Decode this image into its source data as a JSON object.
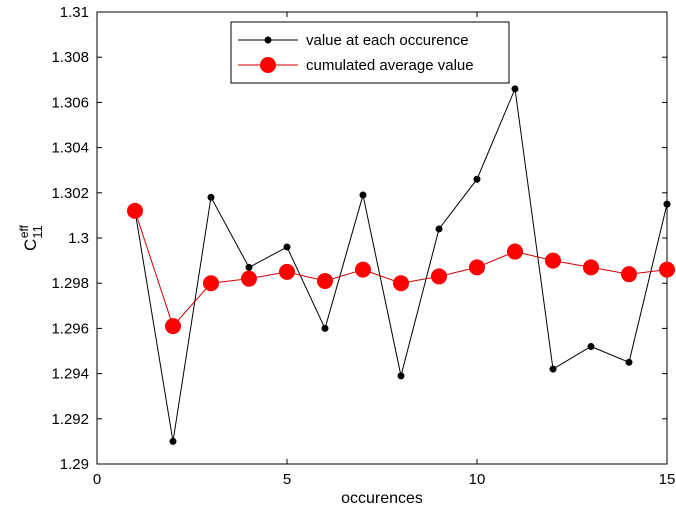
{
  "chart_data": {
    "type": "line",
    "title": "",
    "xlabel": "occurences",
    "ylabel": {
      "base": "C",
      "sup": "eff",
      "sub": "11"
    },
    "xlim": [
      0,
      15
    ],
    "ylim": [
      1.29,
      1.31
    ],
    "xticks": [
      0,
      5,
      10,
      15
    ],
    "xtick_labels": [
      "0",
      "5",
      "10",
      "15"
    ],
    "yticks": [
      1.29,
      1.292,
      1.294,
      1.296,
      1.298,
      1.3,
      1.302,
      1.304,
      1.306,
      1.308,
      1.31
    ],
    "ytick_labels": [
      "1.29",
      "1.292",
      "1.294",
      "1.296",
      "1.298",
      "1.3",
      "1.302",
      "1.304",
      "1.306",
      "1.308",
      "1.31"
    ],
    "grid": false,
    "legend_position": "top-center",
    "x": [
      1,
      2,
      3,
      4,
      5,
      6,
      7,
      8,
      9,
      10,
      11,
      12,
      13,
      14,
      15
    ],
    "series": [
      {
        "name": "value at each occurence",
        "color": "#000000",
        "marker": "small-dot",
        "values": [
          1.3012,
          1.291,
          1.3018,
          1.2987,
          1.2996,
          1.296,
          1.3019,
          1.2939,
          1.3004,
          1.3026,
          1.3066,
          1.2942,
          1.2952,
          1.2945,
          1.3015
        ]
      },
      {
        "name": "cumulated average value",
        "color": "#ff0000",
        "line_color": "#d00000",
        "marker": "large-dot",
        "values": [
          1.3012,
          1.2961,
          1.298,
          1.2982,
          1.2985,
          1.2981,
          1.2986,
          1.298,
          1.2983,
          1.2987,
          1.2994,
          1.299,
          1.2987,
          1.2984,
          1.2986
        ]
      }
    ]
  }
}
